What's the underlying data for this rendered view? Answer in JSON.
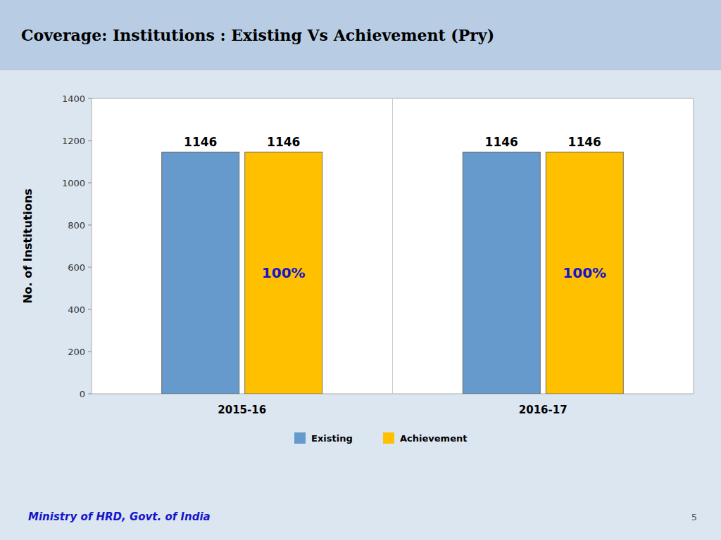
{
  "chart_data": {
    "type": "bar",
    "title": "Coverage: Institutions : Existing Vs Achievement (Pry)",
    "ylabel": "No. of Institutions",
    "categories": [
      "2015-16",
      "2016-17"
    ],
    "series": [
      {
        "name": "Existing",
        "color": "#6699cc",
        "values": [
          1146,
          1146
        ]
      },
      {
        "name": "Achievement",
        "color": "#ffc000",
        "values": [
          1146,
          1146
        ],
        "percentages": [
          100,
          100
        ],
        "percentage_labels": [
          "100%",
          "100%"
        ]
      }
    ],
    "ylim": [
      0,
      1400
    ],
    "yticks": [
      0,
      200,
      400,
      600,
      800,
      1000,
      1200,
      1400
    ],
    "grid": false,
    "legend": "bottom",
    "data_labels": true,
    "footer": "Ministry of HRD, Govt. of India",
    "page_number": "5"
  }
}
